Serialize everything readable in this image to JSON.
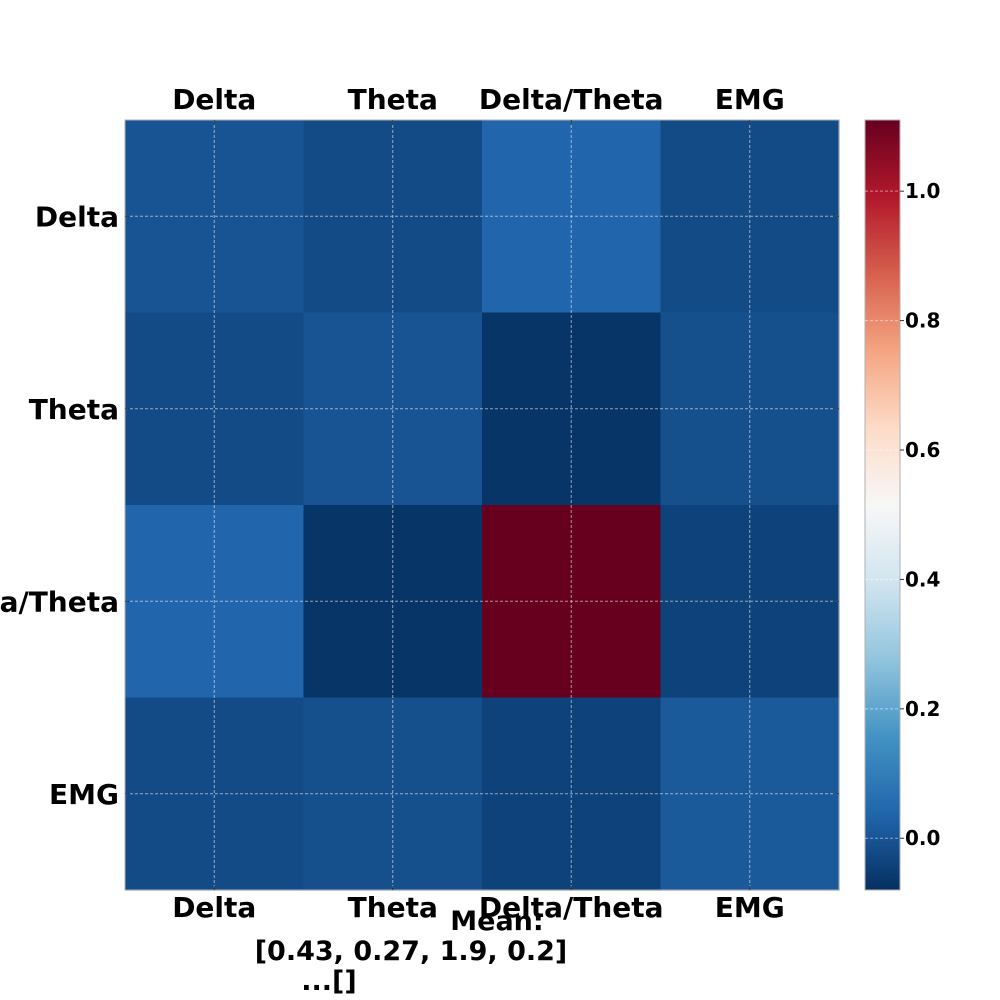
{
  "chart_data": {
    "type": "heatmap",
    "title": "",
    "xlabel": "",
    "ylabel": "",
    "x_categories": [
      "Delta",
      "Theta",
      "Delta/Theta",
      "EMG"
    ],
    "y_categories": [
      "Delta",
      "Theta",
      "Delta/Theta",
      "EMG"
    ],
    "values": [
      [
        0.0,
        -0.02,
        0.04,
        -0.02
      ],
      [
        -0.02,
        0.0,
        -0.07,
        -0.01
      ],
      [
        0.04,
        -0.07,
        1.12,
        -0.04
      ],
      [
        -0.02,
        -0.01,
        -0.04,
        0.01
      ]
    ],
    "colormap": "RdBu_r",
    "vmin": -0.08,
    "vmax": 1.11,
    "colorbar_ticks": [
      0.0,
      0.2,
      0.4,
      0.6,
      0.8,
      1.0
    ],
    "colorbar_tick_labels": [
      "0.0",
      "0.2",
      "0.4",
      "0.6",
      "0.8",
      "1.0"
    ],
    "grid": true,
    "annotation_lines": [
      "Mean:",
      "[0.43, 0.27, 1.9, 0.2]",
      "...[]"
    ]
  }
}
